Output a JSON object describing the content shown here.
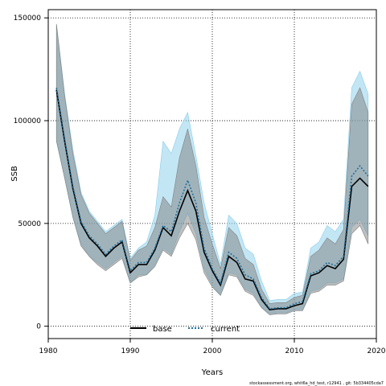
{
  "footer": "stockassessment.org, whit6a_hd_test, r12941 , git: 5b334405cda7",
  "chart_data": {
    "type": "area",
    "title": "",
    "xlabel": "Years",
    "ylabel": "SSB",
    "xlim": [
      1980,
      2020
    ],
    "ylim": [
      -6000,
      154000
    ],
    "x_ticks": [
      1980,
      1990,
      2000,
      2010,
      2020
    ],
    "y_ticks": [
      0,
      50000,
      100000,
      150000
    ],
    "grid": true,
    "legend_position": "bottom",
    "legend": [
      "base",
      "current"
    ],
    "x": [
      1981,
      1982,
      1983,
      1984,
      1985,
      1986,
      1987,
      1988,
      1989,
      1990,
      1991,
      1992,
      1993,
      1994,
      1995,
      1996,
      1997,
      1998,
      1999,
      2000,
      2001,
      2002,
      2003,
      2004,
      2005,
      2006,
      2007,
      2008,
      2009,
      2010,
      2011,
      2012,
      2013,
      2014,
      2015,
      2016,
      2017,
      2018,
      2019
    ],
    "series": [
      {
        "name": "base",
        "color": "#000000",
        "band_color": "#808080",
        "line_style": "solid",
        "values": [
          115000,
          90000,
          67000,
          50000,
          43000,
          39000,
          34000,
          38000,
          41000,
          26000,
          30000,
          30000,
          37000,
          48000,
          44000,
          56000,
          66000,
          56000,
          36000,
          27000,
          20000,
          34000,
          31000,
          23000,
          22000,
          13000,
          8000,
          8500,
          8500,
          10000,
          11000,
          24500,
          26000,
          29500,
          28000,
          32500,
          68000,
          72000,
          68000
        ],
        "lower": [
          90000,
          72000,
          53000,
          39000,
          34000,
          30000,
          27000,
          30000,
          33000,
          21000,
          24000,
          25000,
          29000,
          37000,
          34000,
          43000,
          50000,
          42000,
          26000,
          19000,
          15000,
          25000,
          24000,
          17000,
          15000,
          9000,
          5500,
          6000,
          6000,
          7500,
          7500,
          16000,
          17000,
          20000,
          20000,
          22000,
          45000,
          49000,
          40000
        ],
        "upper": [
          147000,
          112000,
          84000,
          64000,
          55000,
          50000,
          45000,
          48000,
          51000,
          32000,
          37000,
          39000,
          48000,
          63000,
          58000,
          82000,
          96000,
          78000,
          53000,
          40000,
          28000,
          48000,
          44000,
          33000,
          30000,
          18000,
          11000,
          11500,
          11500,
          14000,
          15000,
          34000,
          37000,
          43000,
          40000,
          47000,
          108000,
          116000,
          104000
        ]
      },
      {
        "name": "current",
        "color": "#1f6f9f",
        "band_color": "#87ceeb",
        "line_style": "dotted",
        "values": [
          116000,
          91000,
          68000,
          51000,
          44000,
          40000,
          35000,
          39000,
          42000,
          27000,
          31000,
          31000,
          38000,
          49000,
          46000,
          60000,
          71000,
          60000,
          38000,
          28000,
          21000,
          36000,
          33000,
          25000,
          23000,
          14000,
          8500,
          9000,
          9000,
          11000,
          12000,
          25500,
          27000,
          31000,
          29500,
          34000,
          73000,
          78000,
          73000
        ],
        "lower": [
          91000,
          72000,
          53000,
          40000,
          34000,
          31000,
          28000,
          31000,
          34000,
          21000,
          25000,
          25000,
          30000,
          38000,
          35000,
          46000,
          55000,
          45000,
          28000,
          20000,
          15000,
          26000,
          25000,
          18000,
          16000,
          9500,
          6000,
          6500,
          6500,
          8000,
          8000,
          17000,
          18000,
          21000,
          21000,
          23000,
          48000,
          52000,
          44000
        ],
        "upper": [
          147000,
          113000,
          86000,
          65000,
          56000,
          51000,
          46000,
          49000,
          52000,
          33000,
          38000,
          41000,
          54000,
          90000,
          84000,
          96000,
          104000,
          83000,
          60000,
          45000,
          30000,
          54000,
          50000,
          38000,
          35000,
          22000,
          12500,
          13000,
          13000,
          16000,
          16500,
          38000,
          41000,
          49000,
          46000,
          52000,
          116000,
          124000,
          113000
        ]
      }
    ]
  }
}
